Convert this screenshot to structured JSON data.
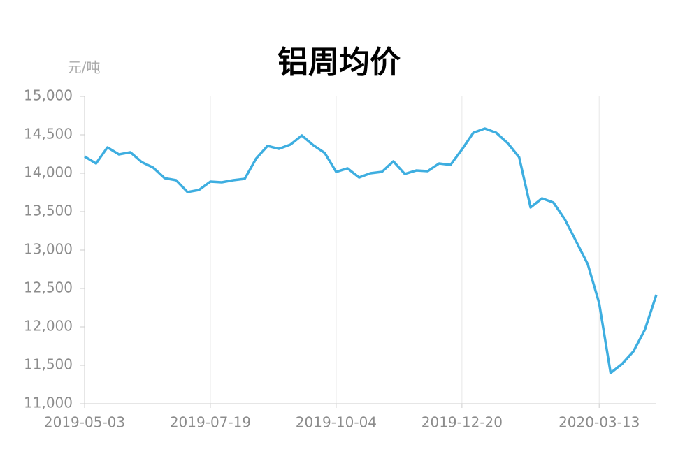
{
  "chart_data": {
    "type": "line",
    "title": "铝周均价",
    "y_unit": "元/吨",
    "categories": [
      "2019-05-03",
      null,
      null,
      null,
      null,
      null,
      null,
      null,
      null,
      null,
      null,
      "2019-07-19",
      null,
      null,
      null,
      null,
      null,
      null,
      null,
      null,
      null,
      null,
      "2019-10-04",
      null,
      null,
      null,
      null,
      null,
      null,
      null,
      null,
      null,
      null,
      "2019-12-20",
      null,
      null,
      null,
      null,
      null,
      null,
      null,
      null,
      null,
      null,
      null,
      "2020-03-13",
      null,
      null,
      null,
      null,
      null
    ],
    "series": [
      {
        "name": "铝周均价",
        "color": "#3eaee0",
        "values": [
          14218,
          14127,
          14336,
          14245,
          14273,
          14145,
          14073,
          13936,
          13909,
          13755,
          13782,
          13891,
          13882,
          13909,
          13927,
          14191,
          14355,
          14318,
          14373,
          14491,
          14364,
          14264,
          14018,
          14064,
          13945,
          14000,
          14018,
          14155,
          13991,
          14036,
          14027,
          14127,
          14109,
          14309,
          14527,
          14582,
          14527,
          14391,
          14209,
          13555,
          13673,
          13618,
          13400,
          13109,
          12818,
          12309,
          11400,
          11518,
          11682,
          11964,
          12418
        ]
      }
    ],
    "ylim": [
      11000,
      15000
    ],
    "yticks": [
      {
        "value": 11000,
        "label": "11,000"
      },
      {
        "value": 11500,
        "label": "11,500"
      },
      {
        "value": 12000,
        "label": "12,000"
      },
      {
        "value": 12500,
        "label": "12,500"
      },
      {
        "value": 13000,
        "label": "13,000"
      },
      {
        "value": 13500,
        "label": "13,500"
      },
      {
        "value": 14000,
        "label": "14,000"
      },
      {
        "value": 14500,
        "label": "14,500"
      },
      {
        "value": 15000,
        "label": "15,000"
      }
    ],
    "grid": "x"
  }
}
